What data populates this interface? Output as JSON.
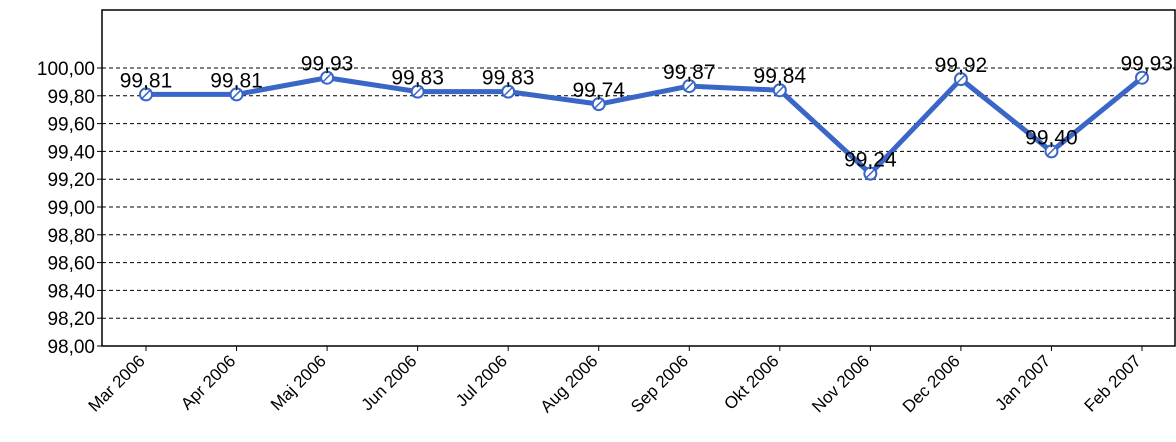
{
  "chart_data": {
    "type": "line",
    "categories": [
      "Mar 2006",
      "Apr 2006",
      "Maj 2006",
      "Jun 2006",
      "Jul 2006",
      "Aug 2006",
      "Sep 2006",
      "Okt 2006",
      "Nov 2006",
      "Dec 2006",
      "Jan 2007",
      "Feb 2007"
    ],
    "series": [
      {
        "values": [
          99.81,
          99.81,
          99.93,
          99.83,
          99.83,
          99.74,
          99.87,
          99.84,
          99.24,
          99.92,
          99.4,
          99.93
        ],
        "data_labels": [
          "99,81",
          "99,81",
          "99,93",
          "99,83",
          "99,83",
          "99,74",
          "99,87",
          "99,84",
          "99,24",
          "99,92",
          "99,40",
          "99,93"
        ],
        "color": "#3a66c8"
      }
    ],
    "ylim": [
      98.0,
      100.0
    ],
    "yticks": [
      98.0,
      98.2,
      98.4,
      98.6,
      98.8,
      99.0,
      99.2,
      99.4,
      99.6,
      99.8,
      100.0
    ],
    "ytick_labels": [
      "98,00",
      "98,20",
      "98,40",
      "98,60",
      "98,80",
      "99,00",
      "99,20",
      "99,40",
      "99,60",
      "99,80",
      "100,00"
    ],
    "grid": true,
    "grid_style": "dashed",
    "legend": false,
    "title": "",
    "xlabel": "",
    "ylabel": ""
  }
}
